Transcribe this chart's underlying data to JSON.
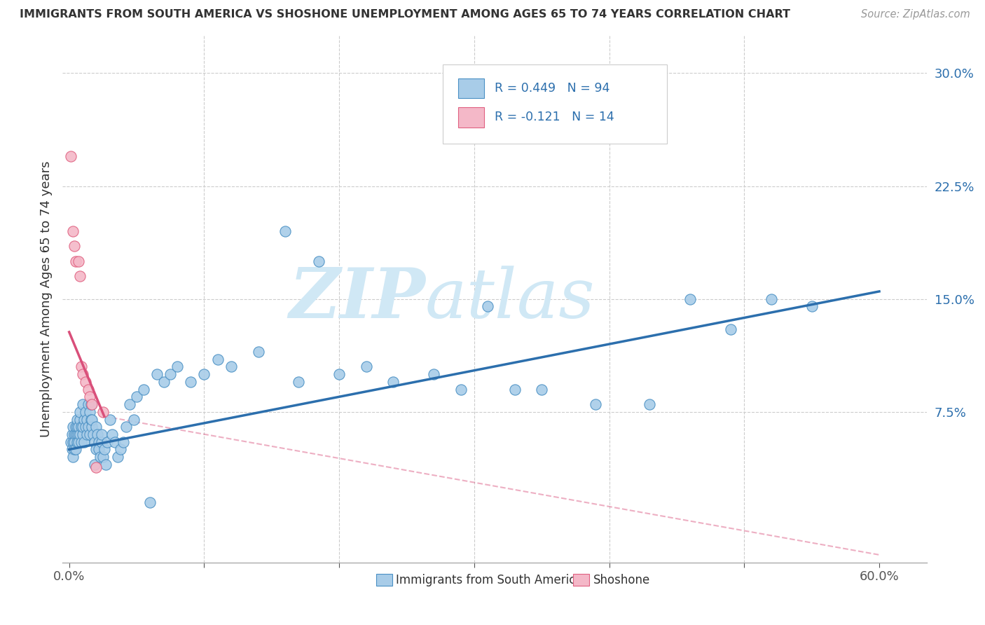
{
  "title": "IMMIGRANTS FROM SOUTH AMERICA VS SHOSHONE UNEMPLOYMENT AMONG AGES 65 TO 74 YEARS CORRELATION CHART",
  "source": "Source: ZipAtlas.com",
  "ylabel": "Unemployment Among Ages 65 to 74 years",
  "yticks": [
    0.0,
    0.075,
    0.15,
    0.225,
    0.3
  ],
  "ytick_labels": [
    "",
    "7.5%",
    "15.0%",
    "22.5%",
    "30.0%"
  ],
  "xlim": [
    -0.005,
    0.635
  ],
  "ylim": [
    -0.025,
    0.325
  ],
  "legend_r1": "R = 0.449",
  "legend_n1": "N = 94",
  "legend_r2": "R = -0.121",
  "legend_n2": "N = 14",
  "blue_color": "#a8cce8",
  "blue_edge": "#4a90c4",
  "pink_color": "#f4b8c8",
  "pink_edge": "#e06080",
  "blue_line_color": "#2c6fad",
  "pink_line_color": "#d94f7a",
  "watermark_color": "#d0e8f5",
  "grid_color": "#cccccc",
  "blue_scatter_x": [
    0.001,
    0.002,
    0.002,
    0.003,
    0.003,
    0.003,
    0.004,
    0.004,
    0.004,
    0.005,
    0.005,
    0.005,
    0.006,
    0.006,
    0.006,
    0.006,
    0.007,
    0.007,
    0.007,
    0.008,
    0.008,
    0.008,
    0.009,
    0.009,
    0.01,
    0.01,
    0.01,
    0.011,
    0.011,
    0.012,
    0.012,
    0.013,
    0.013,
    0.014,
    0.014,
    0.015,
    0.015,
    0.016,
    0.016,
    0.017,
    0.017,
    0.018,
    0.019,
    0.019,
    0.02,
    0.02,
    0.021,
    0.022,
    0.022,
    0.023,
    0.024,
    0.024,
    0.025,
    0.026,
    0.027,
    0.028,
    0.03,
    0.032,
    0.034,
    0.036,
    0.038,
    0.04,
    0.042,
    0.045,
    0.048,
    0.05,
    0.055,
    0.06,
    0.065,
    0.07,
    0.075,
    0.08,
    0.09,
    0.1,
    0.11,
    0.12,
    0.14,
    0.16,
    0.17,
    0.185,
    0.2,
    0.22,
    0.24,
    0.27,
    0.29,
    0.31,
    0.33,
    0.35,
    0.39,
    0.43,
    0.46,
    0.49,
    0.52,
    0.55
  ],
  "blue_scatter_y": [
    0.055,
    0.06,
    0.05,
    0.065,
    0.055,
    0.045,
    0.06,
    0.055,
    0.05,
    0.06,
    0.065,
    0.05,
    0.06,
    0.055,
    0.065,
    0.07,
    0.06,
    0.055,
    0.065,
    0.07,
    0.06,
    0.075,
    0.065,
    0.055,
    0.06,
    0.065,
    0.08,
    0.07,
    0.055,
    0.065,
    0.075,
    0.06,
    0.07,
    0.08,
    0.065,
    0.075,
    0.06,
    0.07,
    0.08,
    0.065,
    0.07,
    0.06,
    0.055,
    0.04,
    0.05,
    0.065,
    0.06,
    0.055,
    0.05,
    0.045,
    0.055,
    0.06,
    0.045,
    0.05,
    0.04,
    0.055,
    0.07,
    0.06,
    0.055,
    0.045,
    0.05,
    0.055,
    0.065,
    0.08,
    0.07,
    0.085,
    0.09,
    0.015,
    0.1,
    0.095,
    0.1,
    0.105,
    0.095,
    0.1,
    0.11,
    0.105,
    0.115,
    0.195,
    0.095,
    0.175,
    0.1,
    0.105,
    0.095,
    0.1,
    0.09,
    0.145,
    0.09,
    0.09,
    0.08,
    0.08,
    0.15,
    0.13,
    0.15,
    0.145
  ],
  "pink_scatter_x": [
    0.001,
    0.003,
    0.004,
    0.005,
    0.007,
    0.008,
    0.009,
    0.01,
    0.012,
    0.014,
    0.015,
    0.017,
    0.02,
    0.025
  ],
  "pink_scatter_y": [
    0.245,
    0.195,
    0.185,
    0.175,
    0.175,
    0.165,
    0.105,
    0.1,
    0.095,
    0.09,
    0.085,
    0.08,
    0.038,
    0.075
  ],
  "blue_line_x": [
    0.0,
    0.6
  ],
  "blue_line_y": [
    0.05,
    0.155
  ],
  "pink_solid_line_x": [
    0.0,
    0.026
  ],
  "pink_solid_line_y": [
    0.128,
    0.072
  ],
  "pink_dash_line_x": [
    0.026,
    0.6
  ],
  "pink_dash_line_y": [
    0.072,
    -0.02
  ]
}
